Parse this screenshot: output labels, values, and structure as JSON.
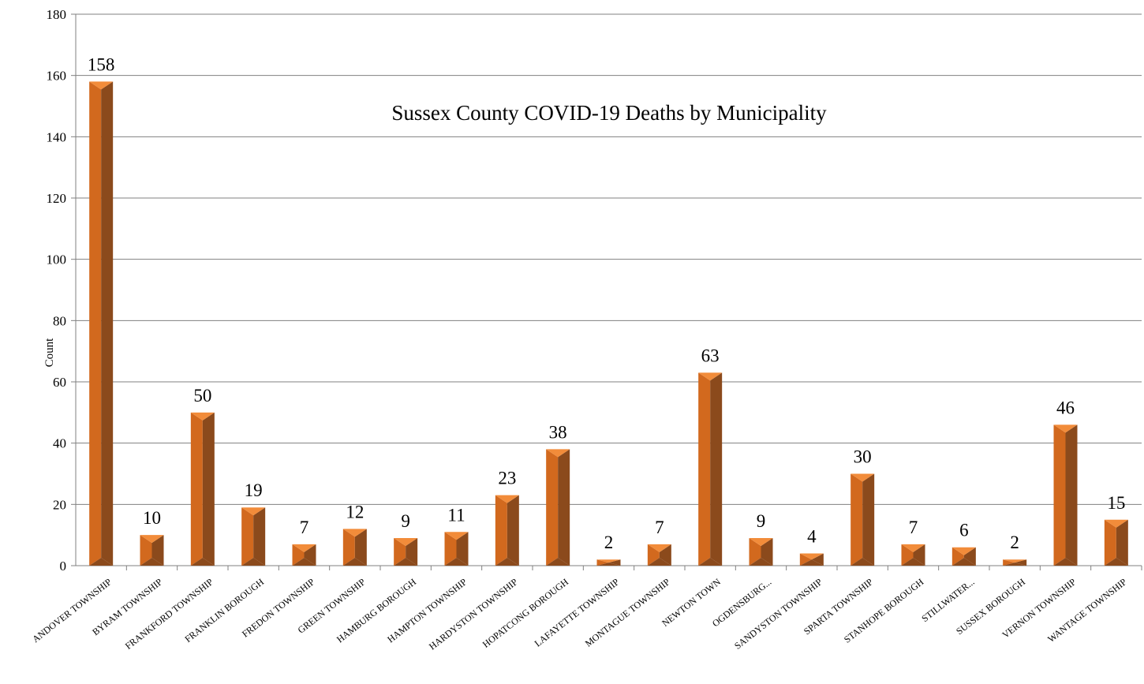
{
  "chart_data": {
    "type": "bar",
    "title": "Sussex County COVID-19 Deaths by Municipality",
    "ylabel": "Count",
    "xlabel": "",
    "ylim": [
      0,
      180
    ],
    "yticks": [
      "0",
      "20",
      "40",
      "60",
      "80",
      "100",
      "120",
      "140",
      "160",
      "180"
    ],
    "grid": true,
    "categories": [
      "ANDOVER TOWNSHIP",
      "BYRAM TOWNSHIP",
      "FRANKFORD TOWNSHIP",
      "FRANKLIN BOROUGH",
      "FREDON TOWNSHIP",
      "GREEN TOWNSHIP",
      "HAMBURG BOROUGH",
      "HAMPTON TOWNSHIP",
      "HARDYSTON TOWNSHIP",
      "HOPATCONG BOROUGH",
      "LAFAYETTE TOWNSHIP",
      "MONTAGUE TOWNSHIP",
      "NEWTON TOWN",
      "OGDENSBURG...",
      "SANDYSTON TOWNSHIP",
      "SPARTA TOWNSHIP",
      "STANHOPE BOROUGH",
      "STILLWATER...",
      "SUSSEX BOROUGH",
      "VERNON TOWNSHIP",
      "WANTAGE TOWNSHIP"
    ],
    "values": [
      158,
      10,
      50,
      19,
      7,
      12,
      9,
      11,
      23,
      38,
      2,
      7,
      63,
      9,
      4,
      30,
      7,
      6,
      2,
      46,
      15
    ],
    "labels": [
      "158",
      "10",
      "50",
      "19",
      "7",
      "12",
      "9",
      "11",
      "23",
      "38",
      "2",
      "7",
      "63",
      "9",
      "4",
      "30",
      "7",
      "6",
      "2",
      "46",
      "15"
    ],
    "colors": {
      "front": "#d2691e",
      "side": "#8b4a1c",
      "top": "#f28c3a",
      "grid": "#808080",
      "axis": "#808080"
    }
  }
}
